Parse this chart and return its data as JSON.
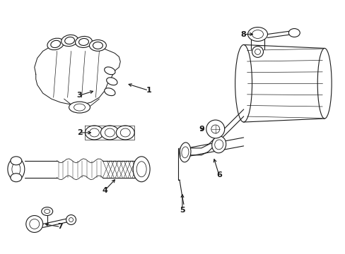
{
  "bg_color": "#ffffff",
  "line_color": "#1a1a1a",
  "line_width": 0.8,
  "fig_width": 4.89,
  "fig_height": 3.6,
  "dpi": 100
}
